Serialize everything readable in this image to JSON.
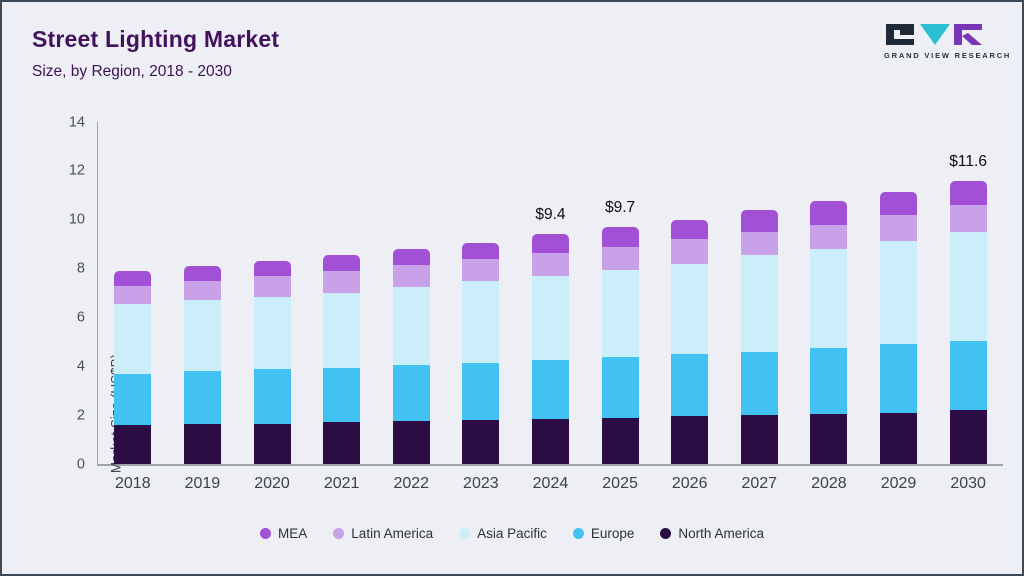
{
  "header": {
    "logo_text": "GRAND VIEW RESEARCH"
  },
  "chart_data": {
    "type": "bar",
    "stacked": true,
    "title": "Street Lighting Market",
    "subtitle": "Size, by Region, 2018 - 2030",
    "ylabel": "Market Size (US$B)",
    "ylim": [
      0,
      14
    ],
    "y_ticks": [
      0,
      2,
      4,
      6,
      8,
      10,
      12,
      14
    ],
    "grid": false,
    "legend_position": "bottom",
    "categories": [
      "2018",
      "2019",
      "2020",
      "2021",
      "2022",
      "2023",
      "2024",
      "2025",
      "2026",
      "2027",
      "2028",
      "2029",
      "2030"
    ],
    "series": [
      {
        "name": "MEA",
        "color": "#a251d6",
        "values": [
          0.6,
          0.6,
          0.6,
          0.65,
          0.65,
          0.65,
          0.75,
          0.8,
          0.8,
          0.9,
          0.95,
          0.95,
          1.0
        ]
      },
      {
        "name": "Latin America",
        "color": "#c9a1e9",
        "values": [
          0.75,
          0.8,
          0.85,
          0.9,
          0.9,
          0.9,
          0.95,
          0.95,
          1.0,
          0.95,
          1.0,
          1.05,
          1.1
        ]
      },
      {
        "name": "Asia Pacific",
        "color": "#cceefb",
        "values": [
          2.85,
          2.9,
          2.95,
          3.05,
          3.2,
          3.35,
          3.45,
          3.55,
          3.7,
          3.95,
          4.05,
          4.25,
          4.45
        ]
      },
      {
        "name": "Europe",
        "color": "#41c2f2",
        "values": [
          2.1,
          2.18,
          2.25,
          2.25,
          2.3,
          2.35,
          2.4,
          2.5,
          2.55,
          2.6,
          2.7,
          2.8,
          2.85
        ]
      },
      {
        "name": "North America",
        "color": "#2c0c44",
        "values": [
          1.6,
          1.62,
          1.65,
          1.7,
          1.75,
          1.8,
          1.85,
          1.9,
          1.95,
          2.0,
          2.05,
          2.1,
          2.2
        ]
      }
    ],
    "totals": [
      7.9,
      8.1,
      8.3,
      8.55,
      8.8,
      9.05,
      9.4,
      9.7,
      10.0,
      10.4,
      10.75,
      11.15,
      11.6
    ],
    "annotations": [
      "",
      "",
      "",
      "",
      "",
      "",
      "$9.4",
      "$9.7",
      "",
      "",
      "",
      "",
      "$11.6"
    ]
  }
}
